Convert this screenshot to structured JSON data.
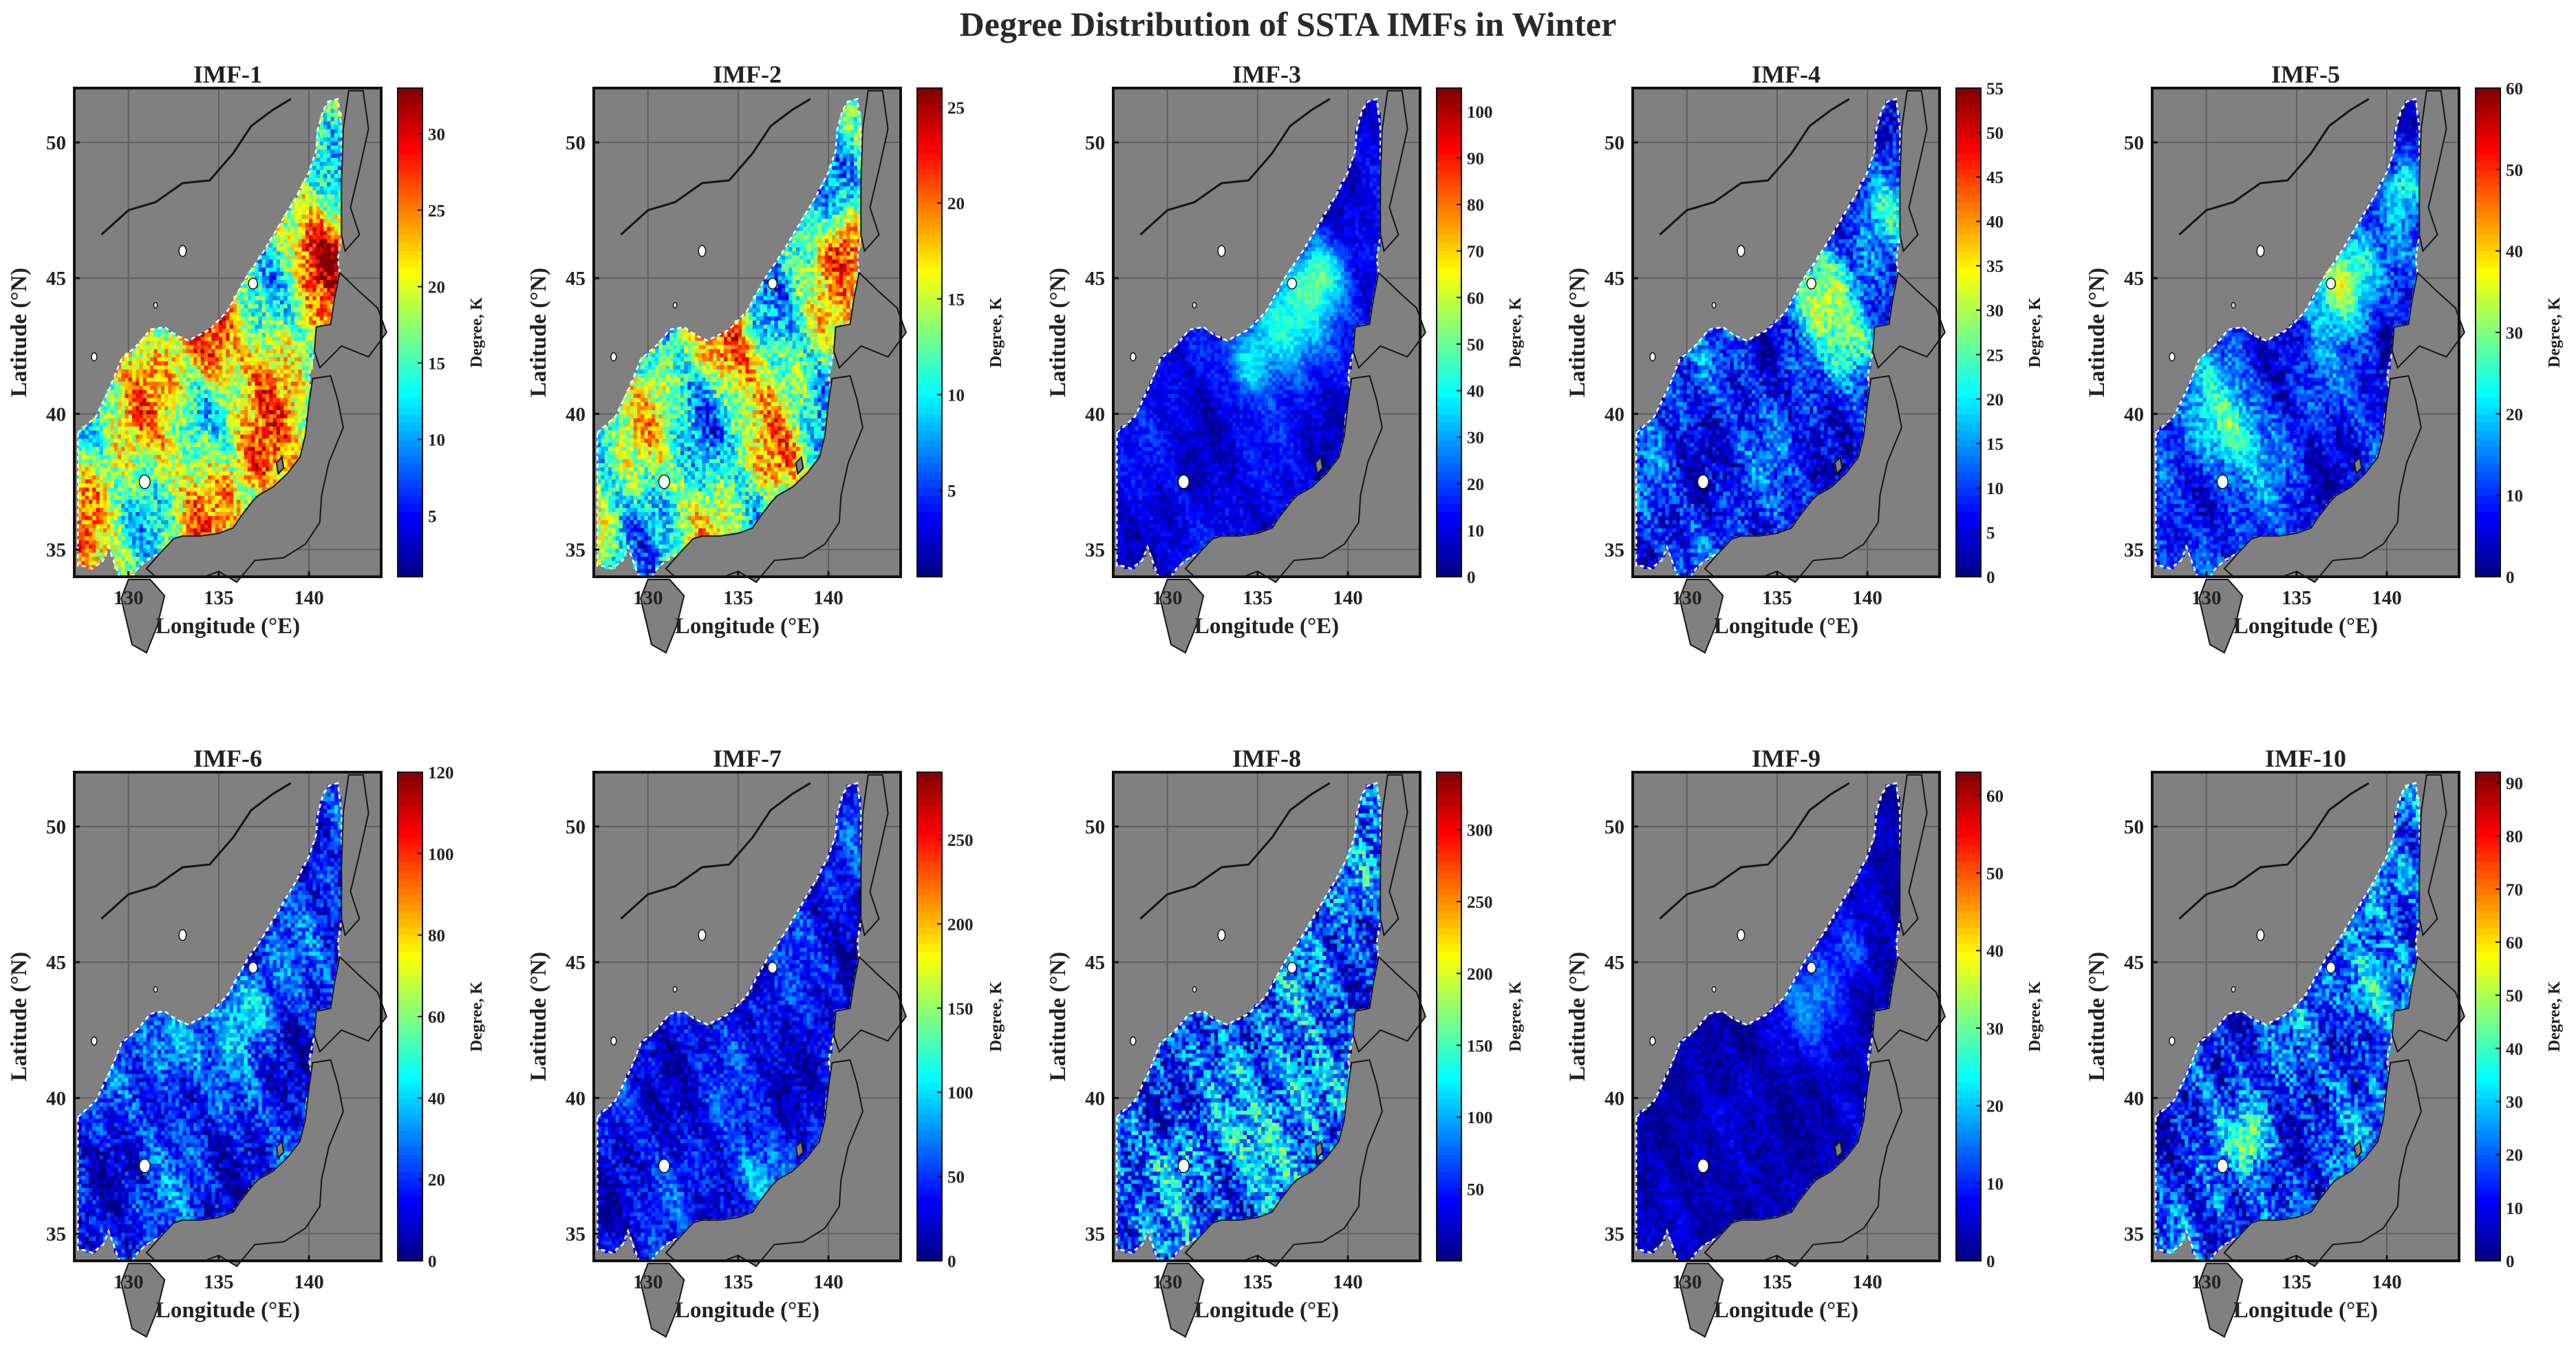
{
  "figure_title": "Degree Distribution of SSTA IMFs in Winter",
  "colors": {
    "land": "#808080",
    "frame": "#111111",
    "coast": "#151515",
    "jet": [
      "#00007f",
      "#0000ff",
      "#007fff",
      "#00ffff",
      "#7fff7f",
      "#ffff00",
      "#ff7f00",
      "#ff0000",
      "#7f0000"
    ]
  },
  "chart_data": [
    {
      "type": "heatmap",
      "title": "IMF-1",
      "xlabel": "Longitude (°E)",
      "ylabel": "Latitude (°N)",
      "colorbar_label": "Degree, K",
      "xlim": [
        127,
        144
      ],
      "ylim": [
        34,
        52
      ],
      "xticks": [
        130,
        135,
        140
      ],
      "yticks": [
        35,
        40,
        45,
        50
      ],
      "clim": [
        1,
        33
      ],
      "cticks": [
        5,
        10,
        15,
        20,
        25,
        30
      ],
      "base": 0.55,
      "spatial": 0.25,
      "noise": 0.15,
      "hotspots": [
        [
          134.5,
          42.2,
          0.3,
          1.6
        ],
        [
          140.5,
          46.0,
          0.3,
          1.4
        ],
        [
          137.5,
          38.0,
          0.25,
          1.5
        ]
      ]
    },
    {
      "type": "heatmap",
      "title": "IMF-2",
      "xlabel": "Longitude (°E)",
      "ylabel": "Latitude (°N)",
      "colorbar_label": "Degree, K",
      "xlim": [
        127,
        144
      ],
      "ylim": [
        34,
        52
      ],
      "xticks": [
        130,
        135,
        140
      ],
      "yticks": [
        35,
        40,
        45,
        50
      ],
      "clim": [
        0.5,
        26
      ],
      "cticks": [
        5,
        10,
        15,
        20,
        25
      ],
      "base": 0.45,
      "spatial": 0.25,
      "noise": 0.15,
      "hotspots": [
        [
          134.8,
          42.3,
          0.35,
          1.5
        ],
        [
          141.0,
          46.2,
          0.35,
          1.3
        ],
        [
          137.5,
          38.0,
          0.25,
          1.3
        ]
      ]
    },
    {
      "type": "heatmap",
      "title": "IMF-3",
      "xlabel": "Longitude (°E)",
      "ylabel": "Latitude (°N)",
      "colorbar_label": "Degree, K",
      "xlim": [
        127,
        144
      ],
      "ylim": [
        34,
        52
      ],
      "xticks": [
        130,
        135,
        140
      ],
      "yticks": [
        35,
        40,
        45,
        50
      ],
      "clim": [
        0,
        105
      ],
      "cticks": [
        0,
        10,
        20,
        30,
        40,
        50,
        60,
        70,
        80,
        90,
        100
      ],
      "base": 0.1,
      "spatial": 0.05,
      "noise": 0.06,
      "hotspots": [
        [
          136.5,
          43.5,
          0.35,
          2.0
        ],
        [
          138.5,
          45.2,
          0.3,
          1.3
        ],
        [
          134.5,
          41.8,
          0.2,
          1.2
        ]
      ]
    },
    {
      "type": "heatmap",
      "title": "IMF-4",
      "xlabel": "Longitude (°E)",
      "ylabel": "Latitude (°N)",
      "colorbar_label": "Degree, K",
      "xlim": [
        127,
        144
      ],
      "ylim": [
        34,
        52
      ],
      "xticks": [
        130,
        135,
        140
      ],
      "yticks": [
        35,
        40,
        45,
        50
      ],
      "clim": [
        0,
        55
      ],
      "cticks": [
        0,
        5,
        10,
        15,
        20,
        25,
        30,
        35,
        40,
        45,
        50,
        55
      ],
      "base": 0.15,
      "spatial": 0.1,
      "noise": 0.12,
      "hotspots": [
        [
          137.5,
          44.5,
          0.4,
          1.8
        ],
        [
          139.5,
          42.5,
          0.25,
          1.3
        ],
        [
          141.0,
          47.5,
          0.2,
          1.2
        ]
      ]
    },
    {
      "type": "heatmap",
      "title": "IMF-5",
      "xlabel": "Longitude (°E)",
      "ylabel": "Latitude (°N)",
      "colorbar_label": "Degree, K",
      "xlim": [
        127,
        144
      ],
      "ylim": [
        34,
        52
      ],
      "xticks": [
        130,
        135,
        140
      ],
      "yticks": [
        35,
        40,
        45,
        50
      ],
      "clim": [
        0,
        60
      ],
      "cticks": [
        0,
        10,
        20,
        30,
        40,
        50,
        60
      ],
      "base": 0.15,
      "spatial": 0.1,
      "noise": 0.1,
      "hotspots": [
        [
          137.5,
          45.0,
          0.45,
          1.6
        ],
        [
          131.0,
          39.5,
          0.3,
          2.0
        ],
        [
          141.0,
          48.5,
          0.25,
          1.0
        ]
      ]
    },
    {
      "type": "heatmap",
      "title": "IMF-6",
      "xlabel": "Longitude (°E)",
      "ylabel": "Latitude (°N)",
      "colorbar_label": "Degree, K",
      "xlim": [
        127,
        144
      ],
      "ylim": [
        34,
        52
      ],
      "xticks": [
        130,
        135,
        140
      ],
      "yticks": [
        35,
        40,
        45,
        50
      ],
      "clim": [
        0,
        120
      ],
      "cticks": [
        0,
        20,
        40,
        60,
        80,
        100,
        120
      ],
      "base": 0.15,
      "spatial": 0.1,
      "noise": 0.12,
      "hotspots": [
        [
          132.5,
          42.0,
          0.25,
          1.5
        ],
        [
          136.5,
          43.5,
          0.2,
          1.5
        ]
      ]
    },
    {
      "type": "heatmap",
      "title": "IMF-7",
      "xlabel": "Longitude (°E)",
      "ylabel": "Latitude (°N)",
      "colorbar_label": "Degree, K",
      "xlim": [
        127,
        144
      ],
      "ylim": [
        34,
        52
      ],
      "xticks": [
        130,
        135,
        140
      ],
      "yticks": [
        35,
        40,
        45,
        50
      ],
      "clim": [
        0,
        290
      ],
      "cticks": [
        0,
        50,
        100,
        150,
        200,
        250
      ],
      "base": 0.12,
      "spatial": 0.08,
      "noise": 0.1,
      "hotspots": [
        [
          136.0,
          37.0,
          0.2,
          1.5
        ]
      ]
    },
    {
      "type": "heatmap",
      "title": "IMF-8",
      "xlabel": "Longitude (°E)",
      "ylabel": "Latitude (°N)",
      "colorbar_label": "Degree, K",
      "xlim": [
        127,
        144
      ],
      "ylim": [
        34,
        52
      ],
      "xticks": [
        130,
        135,
        140
      ],
      "yticks": [
        35,
        40,
        45,
        50
      ],
      "clim": [
        0,
        340
      ],
      "cticks": [
        50,
        100,
        150,
        200,
        250,
        300
      ],
      "base": 0.2,
      "spatial": 0.1,
      "noise": 0.18,
      "hotspots": [
        [
          135.5,
          38.0,
          0.2,
          1.8
        ],
        [
          137.5,
          40.5,
          0.2,
          1.5
        ],
        [
          130.5,
          37.5,
          0.15,
          1.2
        ]
      ]
    },
    {
      "type": "heatmap",
      "title": "IMF-9",
      "xlabel": "Longitude (°E)",
      "ylabel": "Latitude (°N)",
      "colorbar_label": "Degree, K",
      "xlim": [
        127,
        144
      ],
      "ylim": [
        34,
        52
      ],
      "xticks": [
        130,
        135,
        140
      ],
      "yticks": [
        35,
        40,
        45,
        50
      ],
      "clim": [
        0,
        63
      ],
      "cticks": [
        0,
        10,
        20,
        30,
        40,
        50,
        60
      ],
      "base": 0.05,
      "spatial": 0.03,
      "noise": 0.06,
      "hotspots": [
        [
          137.0,
          43.5,
          0.2,
          1.8
        ],
        [
          139.0,
          45.5,
          0.15,
          1.2
        ]
      ]
    },
    {
      "type": "heatmap",
      "title": "IMF-10",
      "xlabel": "Longitude (°E)",
      "ylabel": "Latitude (°N)",
      "colorbar_label": "Degree, K",
      "xlim": [
        127,
        144
      ],
      "ylim": [
        34,
        52
      ],
      "xticks": [
        130,
        135,
        140
      ],
      "yticks": [
        35,
        40,
        45,
        50
      ],
      "clim": [
        0,
        92
      ],
      "cticks": [
        0,
        10,
        20,
        30,
        40,
        50,
        60,
        70,
        80,
        90
      ],
      "base": 0.18,
      "spatial": 0.1,
      "noise": 0.15,
      "hotspots": [
        [
          132.5,
          38.5,
          0.3,
          1.0
        ],
        [
          139.0,
          44.0,
          0.25,
          1.4
        ],
        [
          141.0,
          48.0,
          0.15,
          1.2
        ]
      ]
    }
  ]
}
